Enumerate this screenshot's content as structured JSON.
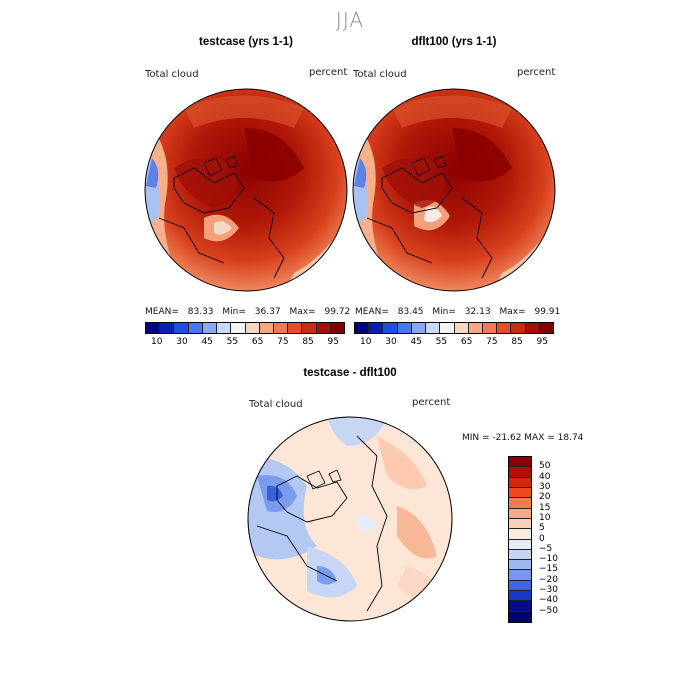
{
  "season": "JJA",
  "panels": [
    {
      "title": "testcase (yrs 1-1)",
      "variable": "Total cloud",
      "units": "percent",
      "mean_label": "MEAN=",
      "mean": "83.33",
      "min_label": "Min=",
      "min": "36.37",
      "max_label": "Max=",
      "max": "99.72"
    },
    {
      "title": "dflt100 (yrs 1-1)",
      "variable": "Total cloud",
      "units": "percent",
      "mean_label": "MEAN=",
      "mean": "83.45",
      "min_label": "Min=",
      "min": "32.13",
      "max_label": "Max=",
      "max": "99.91"
    }
  ],
  "top_colorbar": {
    "labels": [
      "10",
      "30",
      "45",
      "55",
      "65",
      "75",
      "85",
      "95"
    ],
    "colors": [
      "#000080",
      "#0a1fb0",
      "#1f4fe0",
      "#4a78f0",
      "#8aa8f4",
      "#c7d8f8",
      "#f4f4f4",
      "#fbd6c0",
      "#f8a884",
      "#f07a54",
      "#e44e2c",
      "#cc2a12",
      "#a51008",
      "#800000"
    ]
  },
  "diff_panel": {
    "title": "testcase - dflt100",
    "variable": "Total cloud",
    "units": "percent",
    "minmax_text": "MIN = -21.62 MAX =  18.74"
  },
  "diff_colorbar": {
    "labels": [
      "50",
      "40",
      "30",
      "20",
      "15",
      "10",
      "5",
      "0",
      "−5",
      "−10",
      "−15",
      "−20",
      "−30",
      "−40",
      "−50"
    ],
    "colors": [
      "#8a0000",
      "#b01000",
      "#d4280a",
      "#ec4a1e",
      "#f47a50",
      "#f8a884",
      "#fbd0b8",
      "#fdecdf",
      "#e4ecfa",
      "#c4d4f6",
      "#9fb8f2",
      "#7698ee",
      "#3f64e4",
      "#1638c4",
      "#040c8c",
      "#000070"
    ]
  }
}
